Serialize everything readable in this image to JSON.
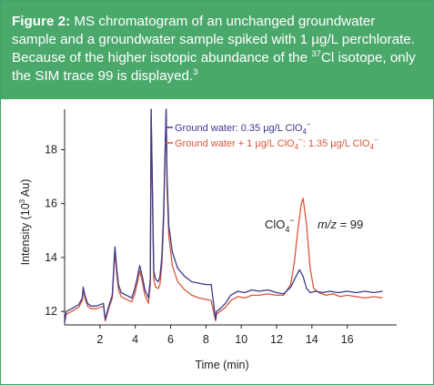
{
  "caption": {
    "label": "Figure 2:",
    "part1": " MS chromatogram of an unchanged groundwater sample and a groundwater sample spiked with 1 µg/L perchlorate. Because of the higher isotopic abundance of the ",
    "isotope_mass": "37",
    "part2": "Cl isotope, only the SIM trace  99 is displayed.",
    "ref": "3"
  },
  "colors": {
    "caption_bg": "#4aa86b",
    "series_groundwater": "#3a3a8c",
    "series_spiked": "#d9573a"
  },
  "chart_data": {
    "type": "line",
    "xlabel": "Time (min)",
    "ylabel_main": "Intensity (10",
    "ylabel_sup": "3",
    "ylabel_tail": " Au)",
    "xlim": [
      0,
      18.8
    ],
    "ylim": [
      11.5,
      19.5
    ],
    "xticks": [
      2,
      4,
      6,
      8,
      10,
      12,
      14,
      16
    ],
    "yticks": [
      12,
      14,
      16,
      18
    ],
    "legend_position": "top-right",
    "annotation": {
      "species": "ClO",
      "species_sub": "4",
      "species_sup": "−",
      "mz_label": "m/z",
      "mz_value": " = 99"
    },
    "series": [
      {
        "name": "Ground water: 0.35 µg/L ClO",
        "name_sub": "4",
        "name_sup": "−",
        "color": "#3a3a8c",
        "x": [
          0.0,
          0.1,
          0.4,
          0.8,
          1.0,
          1.05,
          1.15,
          1.3,
          1.5,
          1.8,
          2.2,
          2.3,
          2.5,
          2.7,
          2.85,
          2.95,
          3.05,
          3.2,
          3.5,
          3.8,
          3.95,
          4.1,
          4.25,
          4.4,
          4.55,
          4.75,
          4.85,
          4.9,
          4.95,
          5.05,
          5.15,
          5.3,
          5.4,
          5.5,
          5.6,
          5.75,
          5.8,
          5.9,
          6.1,
          6.4,
          6.8,
          7.2,
          7.6,
          8.0,
          8.3,
          8.55,
          8.6,
          8.8,
          9.1,
          9.4,
          9.8,
          10.2,
          10.6,
          11.0,
          11.5,
          12.0,
          12.4,
          12.8,
          13.1,
          13.3,
          13.5,
          13.7,
          13.9,
          14.2,
          14.6,
          15.0,
          15.5,
          16.0,
          16.5,
          17.0,
          17.5,
          18.0
        ],
        "y": [
          11.6,
          12.0,
          12.1,
          12.25,
          12.5,
          12.9,
          12.6,
          12.3,
          12.2,
          12.2,
          12.3,
          11.7,
          12.2,
          12.6,
          14.4,
          13.6,
          13.0,
          12.7,
          12.6,
          12.5,
          12.8,
          13.2,
          13.7,
          13.3,
          12.8,
          12.5,
          13.2,
          19.5,
          17.5,
          13.5,
          13.2,
          13.1,
          13.3,
          14.0,
          15.5,
          19.5,
          17.0,
          15.2,
          14.2,
          13.6,
          13.3,
          13.1,
          13.05,
          13.0,
          13.0,
          11.7,
          12.0,
          12.1,
          12.3,
          12.6,
          12.75,
          12.7,
          12.8,
          12.75,
          12.8,
          12.7,
          12.65,
          12.9,
          13.3,
          13.55,
          13.3,
          12.85,
          12.7,
          12.75,
          12.7,
          12.75,
          12.7,
          12.75,
          12.7,
          12.75,
          12.7,
          12.75
        ]
      },
      {
        "name": "Ground water + 1 µg/L ClO",
        "name_sub": "4",
        "name_sup": "−",
        "name_tail": ": 1.35 µg/L ClO",
        "name_tail_sub": "4",
        "name_tail_sup": "−",
        "color": "#d9573a",
        "x": [
          0.0,
          0.1,
          0.4,
          0.8,
          1.0,
          1.05,
          1.15,
          1.3,
          1.5,
          1.8,
          2.2,
          2.3,
          2.5,
          2.7,
          2.85,
          2.95,
          3.05,
          3.2,
          3.5,
          3.8,
          3.95,
          4.1,
          4.25,
          4.4,
          4.55,
          4.75,
          4.85,
          4.9,
          4.95,
          5.05,
          5.15,
          5.3,
          5.4,
          5.5,
          5.6,
          5.75,
          5.8,
          5.9,
          6.1,
          6.4,
          6.8,
          7.2,
          7.6,
          8.0,
          8.3,
          8.55,
          8.6,
          8.8,
          9.1,
          9.4,
          9.8,
          10.2,
          10.6,
          11.0,
          11.5,
          12.0,
          12.4,
          12.8,
          13.0,
          13.2,
          13.4,
          13.5,
          13.7,
          13.9,
          14.1,
          14.4,
          14.8,
          15.2,
          15.6,
          16.0,
          16.5,
          17.0,
          17.5,
          18.0
        ],
        "y": [
          11.6,
          11.9,
          12.0,
          12.15,
          12.4,
          12.8,
          12.5,
          12.2,
          12.1,
          12.1,
          12.2,
          11.65,
          12.1,
          12.5,
          14.2,
          13.4,
          12.8,
          12.55,
          12.45,
          12.35,
          12.6,
          13.0,
          13.5,
          13.1,
          12.6,
          12.3,
          13.0,
          19.5,
          17.2,
          13.2,
          12.9,
          12.85,
          13.0,
          13.7,
          15.2,
          19.5,
          16.6,
          14.8,
          13.7,
          13.1,
          12.8,
          12.6,
          12.5,
          12.45,
          12.4,
          11.65,
          11.9,
          12.0,
          12.15,
          12.4,
          12.55,
          12.5,
          12.6,
          12.6,
          12.65,
          12.6,
          12.6,
          13.0,
          13.8,
          15.0,
          16.0,
          16.2,
          15.2,
          13.6,
          12.85,
          12.7,
          12.6,
          12.65,
          12.55,
          12.6,
          12.55,
          12.5,
          12.55,
          12.5
        ]
      }
    ]
  }
}
